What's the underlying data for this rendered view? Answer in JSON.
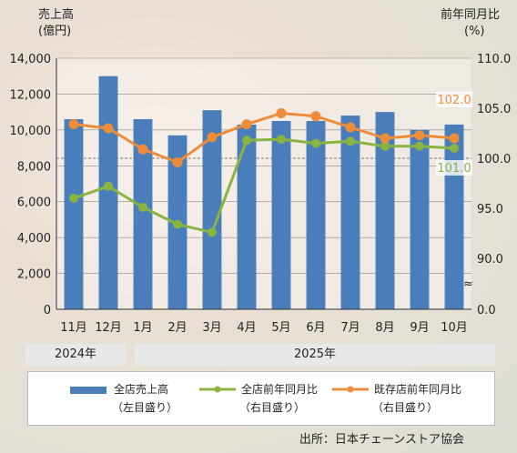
{
  "chart_data": {
    "type": "bar+line",
    "categories": [
      "11月",
      "12月",
      "1月",
      "2月",
      "3月",
      "4月",
      "5月",
      "6月",
      "7月",
      "8月",
      "9月",
      "10月"
    ],
    "left_axis": {
      "label_line1": "売上高",
      "label_line2": "(億円)",
      "ylim": [
        0,
        14000
      ],
      "ticks": [
        "0",
        "2,000",
        "4,000",
        "6,000",
        "8,000",
        "10,000",
        "12,000",
        "14,000"
      ]
    },
    "right_axis": {
      "label_line1": "前年同月比",
      "label_line2": "(%)",
      "ylim": [
        85,
        110
      ],
      "break": true,
      "ticks": [
        "0.0",
        "90.0",
        "95.0",
        "100.0",
        "105.0",
        "110.0"
      ]
    },
    "series": [
      {
        "name": "全店売上高",
        "axis": "left",
        "type": "bar",
        "color": "#4a7ebb",
        "values": [
          10600,
          13000,
          10600,
          9700,
          11100,
          10300,
          10500,
          10500,
          10800,
          11000,
          10000,
          10300
        ]
      },
      {
        "name": "全店前年同月比",
        "axis": "right",
        "type": "line",
        "color": "#8ab440",
        "values": [
          96.0,
          97.2,
          95.1,
          93.4,
          92.6,
          101.8,
          101.9,
          101.5,
          101.7,
          101.2,
          101.2,
          101.0
        ]
      },
      {
        "name": "既存店前年同月比",
        "axis": "right",
        "type": "line",
        "color": "#ef8c3a",
        "values": [
          103.4,
          103.0,
          100.9,
          99.6,
          102.1,
          103.4,
          104.5,
          104.2,
          103.1,
          102.0,
          102.3,
          102.0
        ]
      }
    ],
    "annotations": [
      {
        "series": "既存店前年同月比",
        "category": "10月",
        "text": "102.0"
      },
      {
        "series": "全店前年同月比",
        "category": "10月",
        "text": "101.0"
      }
    ]
  },
  "colors": {
    "bar": "#4a7ebb",
    "all_line": "#8ab440",
    "existing_line": "#ef8c3a"
  },
  "year_bands": [
    "2024年",
    "2025年"
  ],
  "legend": [
    {
      "label": "全店売上高",
      "sub": "（左目盛り）"
    },
    {
      "label": "全店前年同月比",
      "sub": "（右目盛り）"
    },
    {
      "label": "既存店前年同月比",
      "sub": "（右目盛り）"
    }
  ],
  "source": "出所：日本チェーンストア協会",
  "axis_break_symbol": "≈"
}
